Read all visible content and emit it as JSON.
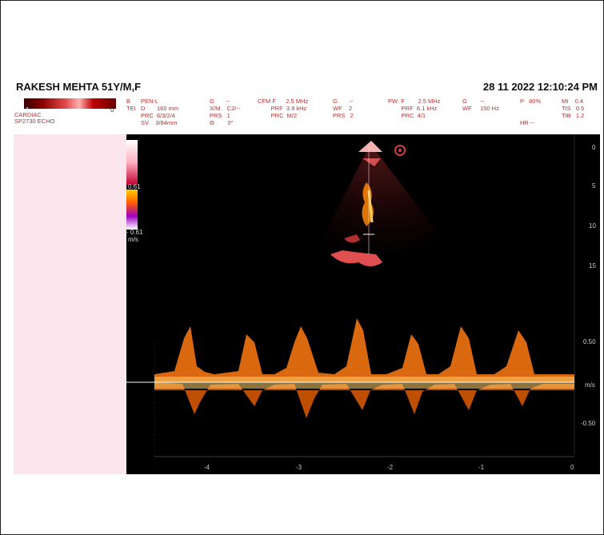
{
  "patient": {
    "name_age": "RAKESH MEHTA  51Y/M,F"
  },
  "datetime": "28  11  2022 12:10:24 PM",
  "colorbar": {
    "left": "1",
    "right": "0"
  },
  "preset": {
    "line1": "CARDIAC",
    "line2": "SP2730   ECHO"
  },
  "params": {
    "col_b": "B\nTEI",
    "col_penl": "PEN-L\nD       160 mm\nPRC  6/3/2/4\nSV    3/84mm",
    "col_g1": "G       --\nX/M    C2/--\nPRS   1\nΘ        0°",
    "col_cfm": "CFM F      2.5 MHz\n        PRF  3.9 kHz\n        PRC  M/2",
    "col_g2": "G       --\nWF    2\nPRS   2",
    "col_pw": "PW  F        2.5 MHz\n        PRF  6.1 kHz\n        PRC  4/1",
    "col_g3": "G        --\nWF     150 Hz",
    "col_p": "P   80%\n\n\nHR --",
    "col_mi": "MI    0.4\nTIS   0.5\nTIB   1.2"
  },
  "scale": {
    "top": "0.61",
    "bottom": "- 0.61",
    "unit": "m/s"
  },
  "depth_marks": [
    "0",
    "5",
    "10",
    "15"
  ],
  "velocity_marks": [
    "0.50",
    "m/s",
    "-0.50"
  ],
  "time_marks": [
    "-4",
    "-3",
    "-2",
    "-1",
    "0"
  ],
  "colors": {
    "doppler_hot": "#ff8c1a",
    "doppler_core": "#ffe080",
    "baseline": "#ffffff"
  }
}
